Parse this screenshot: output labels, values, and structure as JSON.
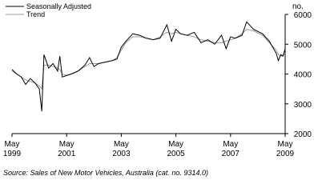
{
  "chart_data": {
    "type": "line",
    "y_label": "no.",
    "source": "Source: Sales of New Motor Vehicles, Australia (cat. no. 9314.0)",
    "legend": "top-left",
    "x": [
      1999.33,
      1999.5,
      1999.67,
      1999.83,
      2000.0,
      2000.17,
      2000.33,
      2000.42,
      2000.5,
      2000.67,
      2000.83,
      2001.0,
      2001.08,
      2001.17,
      2001.33,
      2001.5,
      2001.75,
      2002.0,
      2002.17,
      2002.33,
      2002.5,
      2002.75,
      2003.0,
      2003.17,
      2003.33,
      2003.5,
      2003.75,
      2004.0,
      2004.25,
      2004.5,
      2004.75,
      2005.0,
      2005.17,
      2005.33,
      2005.5,
      2005.75,
      2006.0,
      2006.25,
      2006.5,
      2006.75,
      2007.0,
      2007.17,
      2007.33,
      2007.5,
      2007.75,
      2007.92,
      2008.17,
      2008.5,
      2008.75,
      2009.0,
      2009.08,
      2009.17,
      2009.25,
      2009.33
    ],
    "series": [
      {
        "name": "Seasonally Adjusted",
        "color": "#000000",
        "values": [
          4150,
          4000,
          3900,
          3650,
          3850,
          3700,
          3500,
          2750,
          4650,
          4200,
          4350,
          4100,
          4600,
          3900,
          3950,
          4000,
          4100,
          4300,
          4550,
          4250,
          4350,
          4400,
          4450,
          4500,
          4900,
          5100,
          5350,
          5300,
          5200,
          5150,
          5200,
          5650,
          5100,
          5500,
          5350,
          5300,
          5400,
          5050,
          5150,
          5000,
          5300,
          4850,
          5250,
          5200,
          5300,
          5750,
          5500,
          5350,
          5100,
          4700,
          4450,
          4650,
          4600,
          4850
        ]
      },
      {
        "name": "Trend",
        "color": "#9a9a9a",
        "values": [
          4100,
          4000,
          3900,
          3800,
          3750,
          3700,
          3600,
          3500,
          4300,
          4300,
          4250,
          4200,
          4150,
          4000,
          3950,
          4000,
          4100,
          4250,
          4350,
          4350,
          4350,
          4400,
          4450,
          4550,
          4800,
          5050,
          5250,
          5250,
          5200,
          5150,
          5250,
          5400,
          5350,
          5400,
          5350,
          5300,
          5250,
          5150,
          5100,
          5050,
          5050,
          5100,
          5150,
          5200,
          5350,
          5500,
          5450,
          5300,
          5050,
          4800,
          4650,
          4600,
          4620,
          4700
        ]
      }
    ],
    "xlim": [
      1999.33,
      2009.33
    ],
    "xticks": [
      {
        "value": 1999.33,
        "label": "May 1999"
      },
      {
        "value": 2001.33,
        "label": "May 2001"
      },
      {
        "value": 2003.33,
        "label": "May 2003"
      },
      {
        "value": 2005.33,
        "label": "May 2005"
      },
      {
        "value": 2007.33,
        "label": "May 2007"
      },
      {
        "value": 2009.33,
        "label": "May 2009"
      }
    ],
    "ylim": [
      2000,
      6000
    ],
    "yticks": [
      2000,
      3000,
      4000,
      5000,
      6000
    ]
  }
}
